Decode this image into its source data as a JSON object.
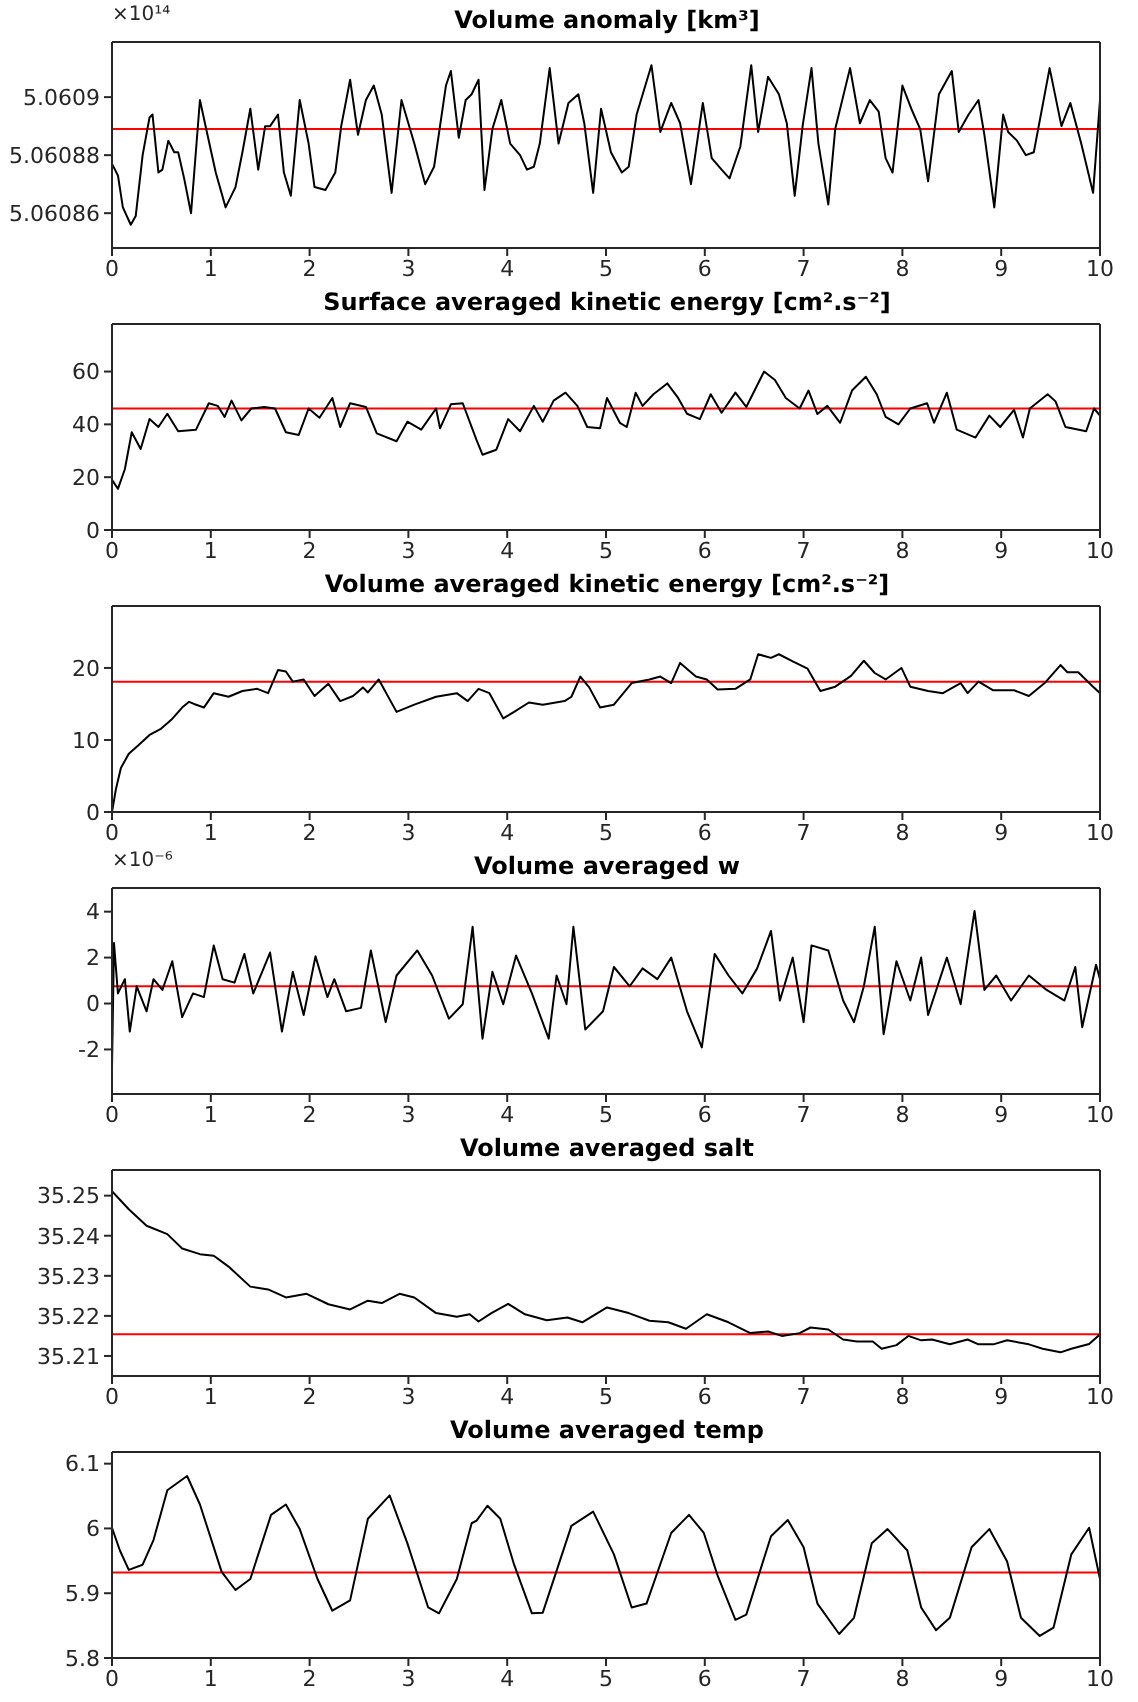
{
  "chart_data": [
    {
      "type": "line",
      "title": "Volume anomaly [km³]",
      "annotations": [
        "×10¹⁴"
      ],
      "xlim": [
        0,
        10
      ],
      "xticks": [
        0,
        1,
        2,
        3,
        4,
        5,
        6,
        7,
        8,
        9,
        10
      ],
      "ylim": [
        5.060848,
        5.060919
      ],
      "yticks": [
        5.06086,
        5.06088,
        5.0609
      ],
      "ref_lines": [
        {
          "axis": "y",
          "value": 5.060889,
          "color": "#ff0000"
        }
      ],
      "series": [
        {
          "color": "#000000",
          "x": [
            0,
            0.06,
            0.11,
            0.19,
            0.24,
            0.31,
            0.38,
            0.41,
            0.47,
            0.51,
            0.57,
            0.63,
            0.67,
            0.73,
            0.8,
            0.89,
            0.96,
            1.05,
            1.15,
            1.25,
            1.32,
            1.4,
            1.48,
            1.55,
            1.6,
            1.68,
            1.74,
            1.81,
            1.9,
            1.99,
            2.05,
            2.16,
            2.26,
            2.32,
            2.41,
            2.49,
            2.57,
            2.65,
            2.73,
            2.83,
            2.93,
            3.06,
            3.17,
            3.26,
            3.38,
            3.43,
            3.51,
            3.58,
            3.64,
            3.71,
            3.77,
            3.85,
            3.94,
            4.03,
            4.13,
            4.2,
            4.27,
            4.33,
            4.43,
            4.52,
            4.62,
            4.72,
            4.78,
            4.87,
            4.95,
            5.05,
            5.16,
            5.23,
            5.31,
            5.46,
            5.55,
            5.66,
            5.75,
            5.86,
            5.98,
            6.07,
            6.17,
            6.25,
            6.36,
            6.47,
            6.54,
            6.64,
            6.75,
            6.83,
            6.91,
            6.99,
            7.08,
            7.15,
            7.25,
            7.32,
            7.47,
            7.57,
            7.67,
            7.76,
            7.83,
            7.9,
            8,
            8.09,
            8.18,
            8.26,
            8.37,
            8.5,
            8.57,
            8.67,
            8.77,
            8.83,
            8.93,
            9.02,
            9.07,
            9.16,
            9.25,
            9.33,
            9.49,
            9.61,
            9.7,
            9.81,
            9.93,
            10
          ],
          "values": [
            5.060877,
            5.060873,
            5.060862,
            5.060856,
            5.060859,
            5.06088,
            5.060893,
            5.060894,
            5.060874,
            5.060875,
            5.060885,
            5.060881,
            5.060881,
            5.060872,
            5.06086,
            5.060899,
            5.060888,
            5.060874,
            5.060862,
            5.060869,
            5.060881,
            5.060896,
            5.060875,
            5.06089,
            5.06089,
            5.060894,
            5.060874,
            5.060866,
            5.060899,
            5.060884,
            5.060869,
            5.060868,
            5.060874,
            5.06089,
            5.060906,
            5.060887,
            5.060899,
            5.060904,
            5.060894,
            5.060867,
            5.060899,
            5.060884,
            5.06087,
            5.060876,
            5.060904,
            5.060909,
            5.060886,
            5.060899,
            5.060901,
            5.060906,
            5.060868,
            5.060889,
            5.060899,
            5.060884,
            5.06088,
            5.060875,
            5.060876,
            5.060884,
            5.06091,
            5.060884,
            5.060898,
            5.060901,
            5.060891,
            5.060867,
            5.060896,
            5.060881,
            5.060874,
            5.060876,
            5.060894,
            5.060911,
            5.060888,
            5.060898,
            5.060891,
            5.06087,
            5.060898,
            5.060879,
            5.060875,
            5.060872,
            5.060883,
            5.060911,
            5.060888,
            5.060907,
            5.060901,
            5.060891,
            5.060866,
            5.06089,
            5.06091,
            5.060884,
            5.060863,
            5.060889,
            5.06091,
            5.060891,
            5.060899,
            5.060895,
            5.060879,
            5.060874,
            5.060904,
            5.060896,
            5.060889,
            5.060871,
            5.060901,
            5.060909,
            5.060888,
            5.060894,
            5.060899,
            5.060887,
            5.060862,
            5.060894,
            5.060888,
            5.060885,
            5.06088,
            5.060881,
            5.06091,
            5.06089,
            5.060898,
            5.060884,
            5.060867,
            5.060899
          ]
        }
      ]
    },
    {
      "type": "line",
      "title": "Surface averaged kinetic energy [cm².s⁻²]",
      "xlim": [
        0,
        10
      ],
      "xticks": [
        0,
        1,
        2,
        3,
        4,
        5,
        6,
        7,
        8,
        9,
        10
      ],
      "ylim": [
        0,
        78
      ],
      "yticks": [
        0,
        20,
        40,
        60
      ],
      "ref_lines": [
        {
          "axis": "y",
          "value": 46,
          "color": "#ff0000"
        }
      ],
      "series": [
        {
          "color": "#000000",
          "x": [
            0,
            0.06,
            0.13,
            0.2,
            0.29,
            0.38,
            0.47,
            0.56,
            0.67,
            0.85,
            0.98,
            1.07,
            1.14,
            1.21,
            1.31,
            1.41,
            1.54,
            1.65,
            1.76,
            1.89,
            1.99,
            2.1,
            2.23,
            2.31,
            2.41,
            2.57,
            2.68,
            2.88,
            2.99,
            3.13,
            3.28,
            3.32,
            3.43,
            3.55,
            3.69,
            3.75,
            3.89,
            4.01,
            4.13,
            4.27,
            4.36,
            4.47,
            4.59,
            4.71,
            4.81,
            4.94,
            5.01,
            5.14,
            5.21,
            5.3,
            5.37,
            5.48,
            5.62,
            5.73,
            5.82,
            5.95,
            6.06,
            6.17,
            6.31,
            6.42,
            6.6,
            6.71,
            6.82,
            6.96,
            7.05,
            7.14,
            7.24,
            7.37,
            7.49,
            7.63,
            7.74,
            7.83,
            7.96,
            8.08,
            8.25,
            8.32,
            8.45,
            8.55,
            8.74,
            8.88,
            8.99,
            9.13,
            9.22,
            9.29,
            9.47,
            9.55,
            9.65,
            9.86,
            9.94,
            10
          ],
          "values": [
            19,
            15.6,
            23,
            37,
            30.7,
            42,
            39,
            44,
            37.4,
            38,
            48,
            47,
            42.8,
            49,
            41.5,
            46,
            46.6,
            46,
            37,
            36,
            46,
            42.5,
            50,
            39,
            48,
            46.6,
            36.6,
            33.6,
            41,
            38,
            46,
            38.5,
            47.6,
            48,
            34,
            28.5,
            30.4,
            42,
            37.4,
            47,
            41,
            49,
            52,
            47,
            39,
            38.5,
            50,
            40.6,
            39,
            52,
            47,
            51.4,
            55.5,
            50,
            44,
            42,
            51.4,
            44.4,
            52,
            46.6,
            60,
            56.8,
            50,
            46,
            52.8,
            43.9,
            47,
            40.6,
            52.8,
            58,
            51.4,
            42.8,
            40,
            46,
            48,
            40.6,
            52,
            38,
            35,
            43.3,
            39,
            45.5,
            35,
            46,
            51.4,
            48.7,
            39,
            37.4,
            46,
            43.3
          ]
        }
      ]
    },
    {
      "type": "line",
      "title": "Volume averaged kinetic energy [cm².s⁻²]",
      "xlim": [
        0,
        10
      ],
      "xticks": [
        0,
        1,
        2,
        3,
        4,
        5,
        6,
        7,
        8,
        9,
        10
      ],
      "ylim": [
        0,
        28.6
      ],
      "yticks": [
        0,
        10,
        20
      ],
      "ref_lines": [
        {
          "axis": "y",
          "value": 18.1,
          "color": "#ff0000"
        }
      ],
      "series": [
        {
          "color": "#000000",
          "x": [
            0,
            0.04,
            0.09,
            0.17,
            0.27,
            0.38,
            0.49,
            0.6,
            0.71,
            0.78,
            0.83,
            0.93,
            1.03,
            1.18,
            1.32,
            1.47,
            1.58,
            1.68,
            1.76,
            1.83,
            1.94,
            2.05,
            2.19,
            2.31,
            2.44,
            2.54,
            2.59,
            2.7,
            2.88,
            3.06,
            3.28,
            3.49,
            3.6,
            3.71,
            3.82,
            3.96,
            4.07,
            4.22,
            4.36,
            4.58,
            4.65,
            4.74,
            4.83,
            4.94,
            5.08,
            5.26,
            5.44,
            5.55,
            5.66,
            5.75,
            5.91,
            6.02,
            6.13,
            6.31,
            6.46,
            6.54,
            6.67,
            6.75,
            6.89,
            7.04,
            7.17,
            7.32,
            7.48,
            7.61,
            7.72,
            7.83,
            7.99,
            8.08,
            8.26,
            8.41,
            8.59,
            8.66,
            8.77,
            8.92,
            9.13,
            9.28,
            9.44,
            9.6,
            9.67,
            9.78,
            9.93,
            10
          ],
          "values": [
            0,
            3.2,
            6.1,
            8.1,
            9.3,
            10.7,
            11.5,
            12.8,
            14.5,
            15.3,
            15,
            14.5,
            16.5,
            16,
            16.8,
            17.1,
            16.5,
            19.7,
            19.5,
            18.1,
            18.4,
            16.1,
            17.8,
            15.4,
            16.1,
            17.3,
            16.6,
            18.4,
            13.9,
            14.9,
            16,
            16.5,
            15.4,
            17.1,
            16.5,
            13,
            13.9,
            15.2,
            14.9,
            15.4,
            16,
            18.8,
            17.3,
            14.5,
            14.9,
            17.9,
            18.4,
            18.8,
            17.9,
            20.7,
            18.8,
            18.4,
            17,
            17.1,
            18.4,
            21.9,
            21.4,
            21.9,
            20.9,
            19.9,
            16.8,
            17.4,
            18.9,
            21,
            19.3,
            18.4,
            20,
            17.4,
            16.8,
            16.5,
            17.9,
            16.5,
            18.1,
            16.9,
            16.9,
            16.1,
            17.9,
            20.4,
            19.4,
            19.4,
            17.4,
            16.5
          ]
        }
      ]
    },
    {
      "type": "line",
      "title": "Volume averaged w",
      "annotations": [
        "×10⁻⁶"
      ],
      "xlim": [
        0,
        10
      ],
      "xticks": [
        0,
        1,
        2,
        3,
        4,
        5,
        6,
        7,
        8,
        9,
        10
      ],
      "ylim": [
        -3.94,
        5.03
      ],
      "yticks": [
        -2,
        0,
        2,
        4
      ],
      "ref_lines": [
        {
          "axis": "y",
          "value": 0.75,
          "color": "#ff0000"
        }
      ],
      "series": [
        {
          "color": "#000000",
          "x": [
            0,
            0.02,
            0.06,
            0.13,
            0.18,
            0.25,
            0.35,
            0.42,
            0.51,
            0.61,
            0.71,
            0.82,
            0.93,
            1.03,
            1.12,
            1.24,
            1.34,
            1.43,
            1.6,
            1.72,
            1.83,
            1.94,
            2.06,
            2.18,
            2.25,
            2.37,
            2.52,
            2.62,
            2.77,
            2.88,
            3.09,
            3.24,
            3.41,
            3.55,
            3.65,
            3.75,
            3.85,
            3.96,
            4.09,
            4.25,
            4.42,
            4.5,
            4.6,
            4.67,
            4.79,
            4.97,
            5.08,
            5.24,
            5.37,
            5.52,
            5.66,
            5.82,
            5.97,
            6.1,
            6.24,
            6.38,
            6.53,
            6.67,
            6.76,
            6.89,
            7,
            7.08,
            7.25,
            7.4,
            7.51,
            7.61,
            7.72,
            7.81,
            7.94,
            8.08,
            8.19,
            8.26,
            8.45,
            8.59,
            8.73,
            8.83,
            8.95,
            9.1,
            9.28,
            9.46,
            9.64,
            9.75,
            9.82,
            9.96,
            10
          ],
          "values": [
            -2.84,
            2.63,
            0.44,
            1.06,
            -1.22,
            0.75,
            -0.34,
            1.06,
            0.59,
            1.84,
            -0.59,
            0.44,
            0.28,
            2.53,
            1.06,
            0.91,
            2.16,
            0.44,
            2.22,
            -1.22,
            1.38,
            -0.5,
            2.06,
            0.28,
            1.06,
            -0.34,
            -0.19,
            2.31,
            -0.81,
            1.22,
            2.31,
            1.22,
            -0.66,
            -0.03,
            3.34,
            -1.53,
            1.38,
            -0.03,
            2.09,
            0.44,
            -1.53,
            1.22,
            -0.03,
            3.34,
            -1.13,
            -0.34,
            1.59,
            0.75,
            1.53,
            1.06,
            2,
            -0.34,
            -1.91,
            2.16,
            1.22,
            0.44,
            1.53,
            3.16,
            0.13,
            2,
            -0.81,
            2.53,
            2.31,
            0.13,
            -0.81,
            0.75,
            3.34,
            -1.34,
            1.84,
            0.13,
            2,
            -0.5,
            2,
            -0.03,
            4.03,
            0.59,
            1.22,
            0.13,
            1.22,
            0.59,
            0.13,
            1.59,
            -1.03,
            1.69,
            1.06
          ]
        }
      ]
    },
    {
      "type": "line",
      "title": "Volume averaged salt",
      "xlim": [
        0,
        10
      ],
      "xticks": [
        0,
        1,
        2,
        3,
        4,
        5,
        6,
        7,
        8,
        9,
        10
      ],
      "ylim": [
        35.205,
        35.2564
      ],
      "yticks": [
        35.21,
        35.22,
        35.23,
        35.24,
        35.25
      ],
      "ref_lines": [
        {
          "axis": "y",
          "value": 35.2154,
          "color": "#ff0000"
        }
      ],
      "series": [
        {
          "color": "#000000",
          "x": [
            0,
            0.17,
            0.35,
            0.56,
            0.71,
            0.89,
            1.03,
            1.18,
            1.4,
            1.58,
            1.76,
            1.97,
            2.19,
            2.41,
            2.59,
            2.73,
            2.91,
            3.06,
            3.28,
            3.49,
            3.62,
            3.71,
            3.84,
            4.01,
            4.18,
            4.4,
            4.61,
            4.76,
            5.01,
            5.23,
            5.44,
            5.63,
            5.81,
            6.02,
            6.24,
            6.46,
            6.64,
            6.78,
            6.96,
            7.07,
            7.25,
            7.4,
            7.54,
            7.7,
            7.79,
            7.94,
            8.06,
            8.19,
            8.3,
            8.48,
            8.66,
            8.77,
            8.92,
            9.06,
            9.28,
            9.42,
            9.6,
            9.71,
            9.89,
            10
          ],
          "values": [
            35.2511,
            35.2466,
            35.2425,
            35.2404,
            35.2368,
            35.2354,
            35.235,
            35.2323,
            35.2273,
            35.2266,
            35.2246,
            35.2255,
            35.2229,
            35.2216,
            35.2238,
            35.2232,
            35.2255,
            35.2246,
            35.2207,
            35.2198,
            35.2204,
            35.2186,
            35.2207,
            35.223,
            35.2204,
            35.2189,
            35.2196,
            35.2184,
            35.2221,
            35.2207,
            35.2188,
            35.2184,
            35.2168,
            35.2204,
            35.2184,
            35.2157,
            35.2161,
            35.215,
            35.2157,
            35.2171,
            35.2166,
            35.2141,
            35.2136,
            35.2136,
            35.2118,
            35.2127,
            35.215,
            35.2139,
            35.2141,
            35.2129,
            35.2141,
            35.2129,
            35.2129,
            35.2139,
            35.2129,
            35.2118,
            35.2109,
            35.2118,
            35.213,
            35.2154
          ]
        }
      ]
    },
    {
      "type": "line",
      "title": "Volume averaged temp",
      "xlim": [
        0,
        10
      ],
      "xticks": [
        0,
        1,
        2,
        3,
        4,
        5,
        6,
        7,
        8,
        9,
        10
      ],
      "ylim": [
        5.8,
        6.118
      ],
      "yticks": [
        5.8,
        5.9,
        6,
        6.1
      ],
      "ref_lines": [
        {
          "axis": "y",
          "value": 5.932,
          "color": "#ff0000"
        }
      ],
      "series": [
        {
          "color": "#000000",
          "x": [
            0,
            0.08,
            0.17,
            0.31,
            0.42,
            0.56,
            0.76,
            0.89,
            1.11,
            1.25,
            1.4,
            1.61,
            1.76,
            1.9,
            2.08,
            2.23,
            2.41,
            2.59,
            2.81,
            2.99,
            3.2,
            3.31,
            3.49,
            3.64,
            3.69,
            3.8,
            3.93,
            4.07,
            4.25,
            4.36,
            4.65,
            4.87,
            5.08,
            5.26,
            5.41,
            5.66,
            5.84,
            5.99,
            6.13,
            6.31,
            6.42,
            6.67,
            6.84,
            7,
            7.14,
            7.36,
            7.51,
            7.69,
            7.85,
            8.05,
            8.19,
            8.34,
            8.48,
            8.7,
            8.88,
            9.06,
            9.2,
            9.39,
            9.53,
            9.71,
            9.89,
            10
          ],
          "values": [
            6.001,
            5.966,
            5.936,
            5.944,
            5.982,
            6.059,
            6.081,
            6.037,
            5.933,
            5.905,
            5.922,
            6.021,
            6.037,
            5.999,
            5.922,
            5.873,
            5.889,
            6.015,
            6.051,
            5.977,
            5.878,
            5.869,
            5.922,
            6.008,
            6.012,
            6.035,
            6.015,
            5.944,
            5.869,
            5.87,
            6.004,
            6.026,
            5.96,
            5.878,
            5.884,
            5.993,
            6.021,
            5.993,
            5.927,
            5.859,
            5.867,
            5.988,
            6.013,
            5.971,
            5.884,
            5.837,
            5.862,
            5.977,
            5.999,
            5.966,
            5.878,
            5.843,
            5.862,
            5.971,
            5.999,
            5.949,
            5.862,
            5.834,
            5.847,
            5.96,
            6.001,
            5.922
          ]
        }
      ]
    }
  ]
}
